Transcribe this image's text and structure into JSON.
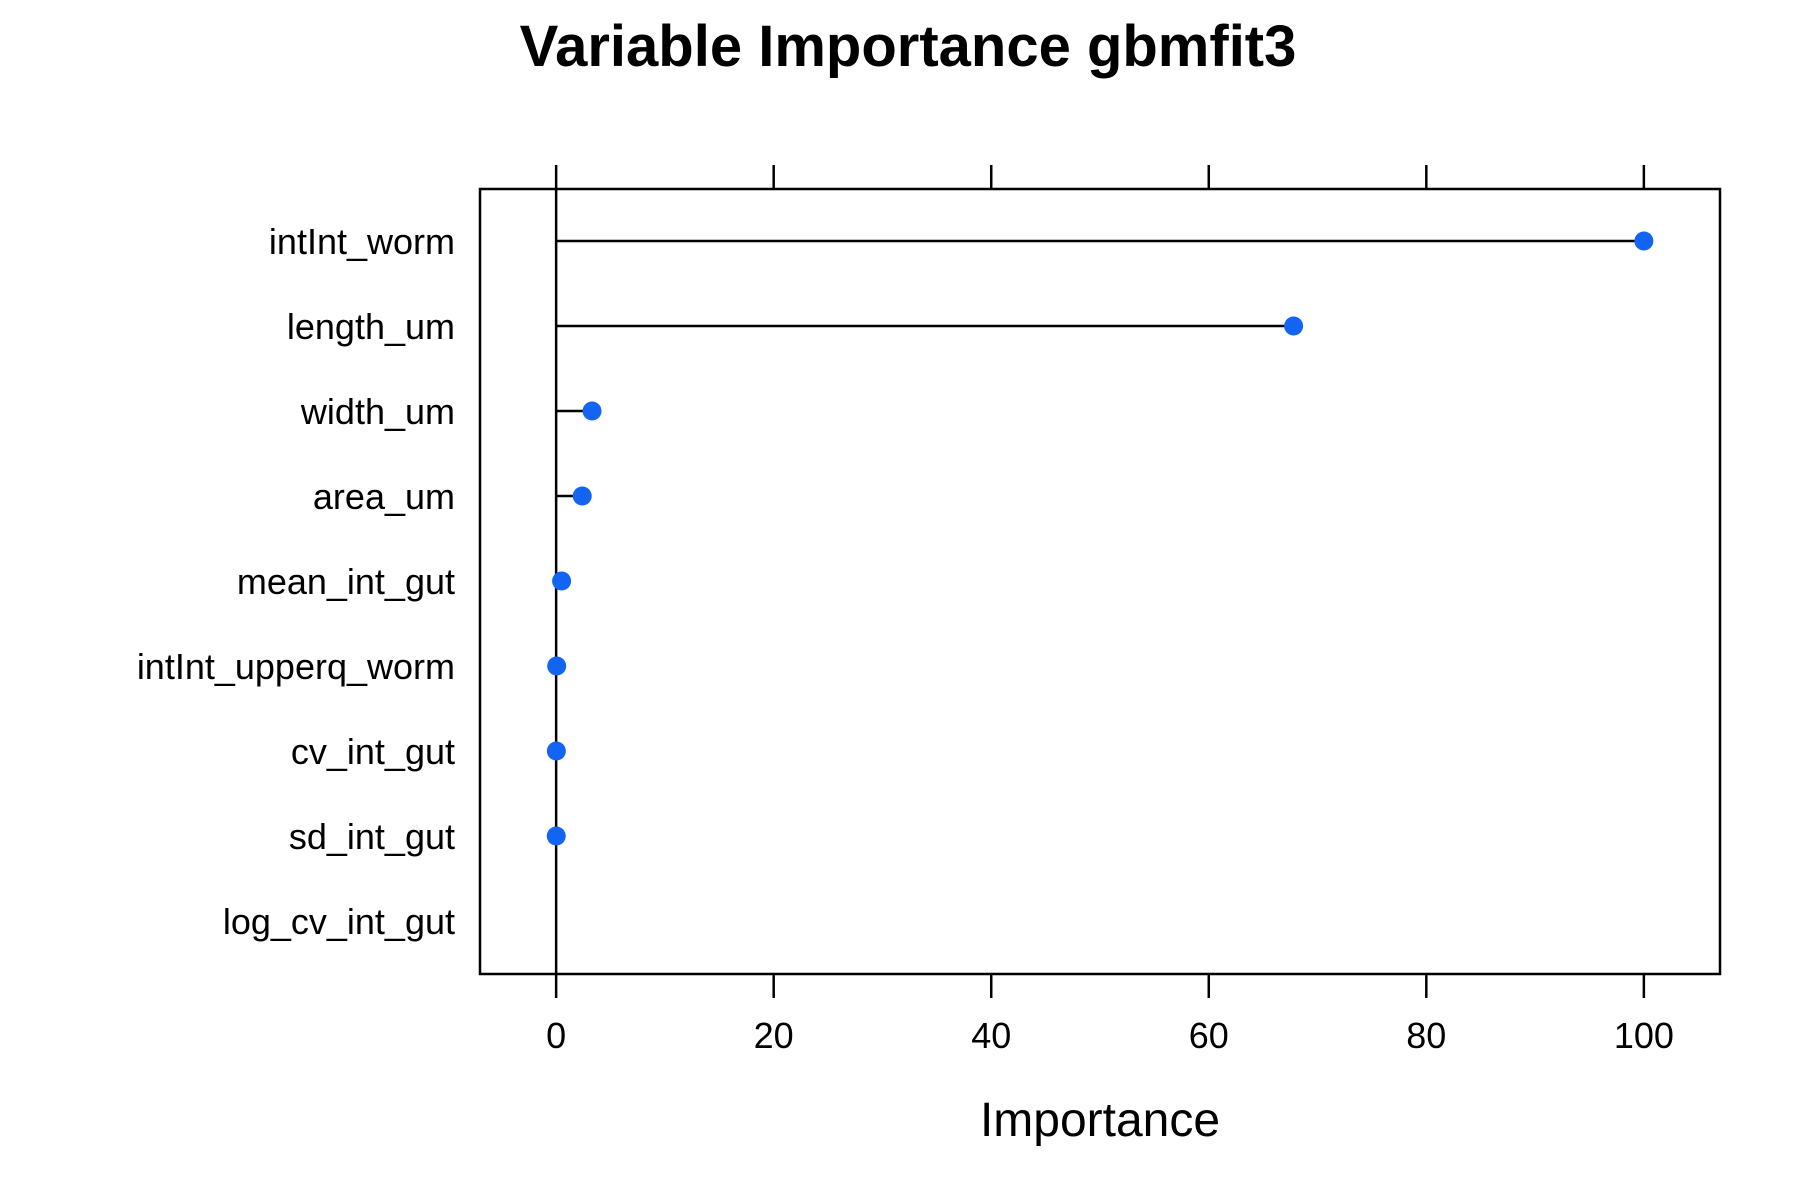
{
  "chart_data": {
    "type": "scatter",
    "title": "Variable Importance gbmfit3",
    "xlabel": "Importance",
    "ylabel": "",
    "xlim": [
      -7,
      107
    ],
    "xticks": [
      0,
      20,
      40,
      60,
      80,
      100
    ],
    "xtick_labels": [
      "0",
      "20",
      "40",
      "60",
      "80",
      "100"
    ],
    "categories": [
      "intInt_worm",
      "length_um",
      "width_um",
      "area_um",
      "mean_int_gut",
      "intInt_upperq_worm",
      "cv_int_gut",
      "sd_int_gut",
      "log_cv_int_gut"
    ],
    "values": [
      100,
      67.8,
      3.3,
      2.4,
      0.5,
      0.05,
      0.02,
      0.01,
      0
    ],
    "show_point": [
      true,
      true,
      true,
      true,
      true,
      true,
      true,
      true,
      false
    ],
    "grid": false,
    "legend": "none",
    "colors": {
      "point": "#1464F4",
      "line": "#000000"
    }
  }
}
